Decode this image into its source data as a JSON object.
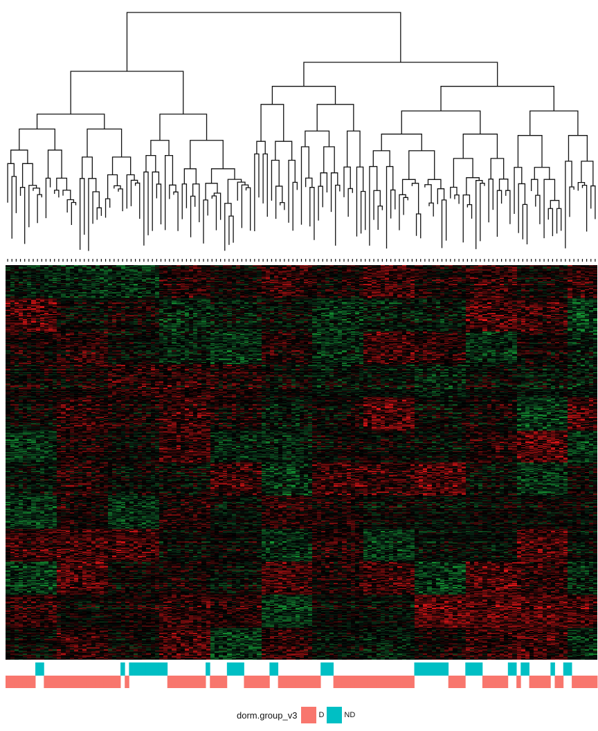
{
  "chart_data": {
    "type": "heatmap",
    "title": "",
    "xlabel": "",
    "ylabel": "",
    "color_scale": {
      "low": "#1f9a3a",
      "mid": "#000000",
      "high": "#e0262a",
      "na": "#b0b0b0"
    },
    "dendrogram": "column dendrogram (hierarchical clustering of samples) drawn above heatmap",
    "annotation": {
      "name": "dorm.group_v3",
      "levels": [
        {
          "label": "D",
          "color": "#F8766D"
        },
        {
          "label": "ND",
          "color": "#00BFC4"
        }
      ],
      "sample_groups": "DDDDDDDNNDDDDDDDDDDDDDDDDDDNDNNNNNNNNNDDDDDDDDDNDDDDNNNNDDDDDDNNDDDDDDDDDDNNNDDDDDDDDDDDDDDDDDDDNNNNNNNNDDDDNNNNDDDDDDNNDNNDDDDDNDDNNDDDDDD"
    }
  },
  "legend": {
    "title": "dorm.group_v3",
    "items": [
      {
        "label": "D",
        "color": "#F8766D"
      },
      {
        "label": "ND",
        "color": "#00BFC4"
      }
    ]
  }
}
